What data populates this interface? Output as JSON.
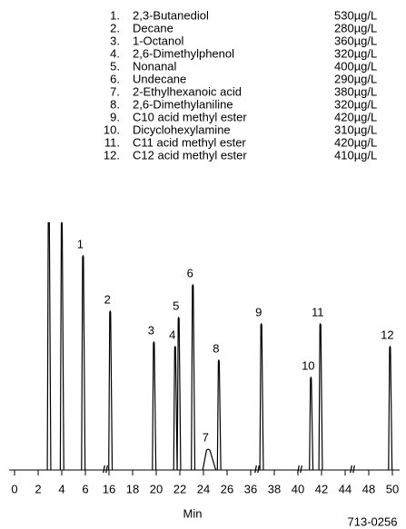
{
  "chart_data": {
    "type": "peaks",
    "compounds": [
      {
        "number": "1.",
        "name": "2,3-Butanediol",
        "amount": "530µg/L"
      },
      {
        "number": "2.",
        "name": "Decane",
        "amount": "280µg/L"
      },
      {
        "number": "3.",
        "name": "1-Octanol",
        "amount": "360µg/L"
      },
      {
        "number": "4.",
        "name": "2,6-Dimethylphenol",
        "amount": "320µg/L"
      },
      {
        "number": "5.",
        "name": "Nonanal",
        "amount": "400µg/L"
      },
      {
        "number": "6.",
        "name": "Undecane",
        "amount": "290µg/L"
      },
      {
        "number": "7.",
        "name": "2-Ethylhexanoic acid",
        "amount": "380µg/L"
      },
      {
        "number": "8.",
        "name": "2,6-Dimethylaniline",
        "amount": "320µg/L"
      },
      {
        "number": "9.",
        "name": "C10 acid methyl ester",
        "amount": "420µg/L"
      },
      {
        "number": "10.",
        "name": "Dicyclohexylamine",
        "amount": "310µg/L"
      },
      {
        "number": "11.",
        "name": "C11 acid methyl ester",
        "amount": "420µg/L"
      },
      {
        "number": "12.",
        "name": "C12 acid methyl ester",
        "amount": "410µg/L"
      }
    ],
    "peaks": [
      {
        "label": null,
        "time": 2.9,
        "height": 300
      },
      {
        "label": null,
        "time": 4.0,
        "height": 273
      },
      {
        "label": "1",
        "time": 5.8,
        "height": 236
      },
      {
        "label": "2",
        "time": 16.1,
        "height": 175
      },
      {
        "label": "3",
        "time": 19.8,
        "height": 141
      },
      {
        "label": "4",
        "time": 21.6,
        "height": 136
      },
      {
        "label": "5",
        "time": 21.9,
        "height": 168
      },
      {
        "label": "6",
        "time": 23.1,
        "height": 204
      },
      {
        "label": "7",
        "time": 24.4,
        "height": 23
      },
      {
        "label": "8",
        "time": 25.3,
        "height": 121
      },
      {
        "label": "9",
        "time": 36.9,
        "height": 161
      },
      {
        "label": "10",
        "time": 41.1,
        "height": 102
      },
      {
        "label": "11",
        "time": 41.9,
        "height": 161
      },
      {
        "label": "12",
        "time": 49.8,
        "height": 136
      }
    ],
    "xticks": [
      0,
      2,
      4,
      6,
      16,
      18,
      20,
      22,
      24,
      26,
      36,
      38,
      40,
      42,
      44,
      48,
      50
    ],
    "xlabel": "Min",
    "code": "713-0256",
    "color": "#000000"
  }
}
